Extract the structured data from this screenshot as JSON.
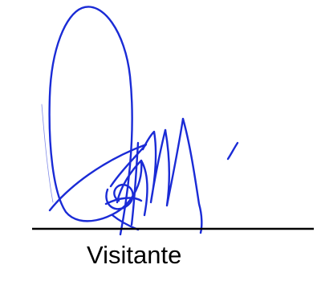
{
  "signature_block": {
    "label": "Visitante",
    "ink_color": "#1a2bd6",
    "line_color": "#000000",
    "label_color": "#000000"
  }
}
